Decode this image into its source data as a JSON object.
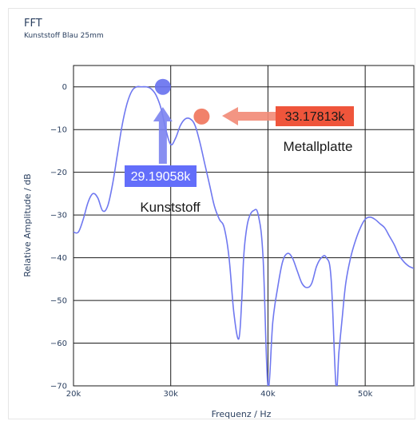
{
  "chart_data": {
    "type": "line",
    "title": "FFT",
    "subtitle": "Kunststoff Blau 25mm",
    "xlabel": "Frequenz / Hz",
    "ylabel": "Relative Amplitude / dB",
    "xlim": [
      20000,
      55000
    ],
    "ylim": [
      -70,
      5
    ],
    "x_ticks": [
      20000,
      30000,
      40000,
      50000
    ],
    "x_tick_labels": [
      "20k",
      "30k",
      "40k",
      "50k"
    ],
    "y_ticks": [
      0,
      -10,
      -20,
      -30,
      -40,
      -50,
      -60,
      -70
    ],
    "y_tick_labels": [
      "0",
      "−10",
      "−20",
      "−30",
      "−40",
      "−50",
      "−60",
      "−70"
    ],
    "grid": true,
    "colors": {
      "line": "#6f78f0",
      "marker_blue": "#6670ee",
      "marker_red": "#f0735a",
      "arrow_blue": "#7b83f0",
      "arrow_red": "#f28a76",
      "label_blue_bg": "#636efa",
      "label_red_bg": "#ef553b"
    },
    "series": [
      {
        "x": [
          20000,
          20500,
          21000,
          21500,
          22000,
          22500,
          23000,
          23500,
          24000,
          24500,
          25000,
          25500,
          26000,
          26500,
          27000,
          27500,
          28000,
          28500,
          29000,
          29500,
          30000,
          30500,
          31000,
          31500,
          32000,
          32500,
          33000,
          33500,
          34000,
          34500,
          35000,
          35500,
          36000,
          36500,
          37000,
          37300,
          37500,
          37700,
          38000,
          38500,
          39000,
          39500,
          40000,
          40500,
          41000,
          41500,
          42000,
          42500,
          43000,
          43500,
          44000,
          44500,
          45000,
          45500,
          46000,
          46500,
          47000,
          47300,
          47600,
          48000,
          48500,
          49000,
          49500,
          50000,
          50500,
          51000,
          51500,
          52000,
          52500,
          53000,
          53500,
          54000,
          54500,
          55000
        ],
        "y": [
          -34,
          -34,
          -31,
          -27,
          -25,
          -26,
          -29,
          -28,
          -23,
          -16,
          -9,
          -4,
          -1,
          0,
          0,
          0,
          -0.5,
          -2,
          -5,
          -10,
          -13.5,
          -12,
          -9,
          -7.5,
          -7.5,
          -9,
          -13,
          -18,
          -23,
          -28,
          -31,
          -33,
          -40,
          -53,
          -59,
          -50,
          -40,
          -35,
          -31,
          -29,
          -30,
          -40,
          -70,
          -55,
          -47,
          -41,
          -39,
          -40,
          -43,
          -46,
          -47,
          -46,
          -42,
          -40,
          -40,
          -45,
          -70,
          -62,
          -55,
          -46,
          -40,
          -36,
          -33,
          -31,
          -30.5,
          -31,
          -32,
          -33,
          -35,
          -37,
          -39.5,
          -41,
          -42,
          -42.5
        ]
      }
    ],
    "annotations": [
      {
        "label": "29.19058k",
        "caption": "Kunststoff",
        "x": 29190.58,
        "y": 0,
        "color": "blue"
      },
      {
        "label": "33.17813k",
        "caption": "Metallplatte",
        "x": 33178.13,
        "y": -7.5,
        "color": "red"
      }
    ]
  }
}
